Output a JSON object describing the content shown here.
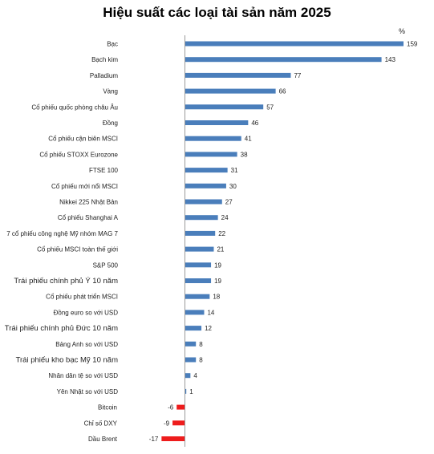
{
  "chart_data": {
    "type": "bar",
    "orientation": "horizontal",
    "title": "Hiệu suất các loại tài sản năm 2025",
    "unit": "%",
    "categories": [
      "Bạc",
      "Bạch kim",
      "Palladium",
      "Vàng",
      "Cổ phiếu quốc phòng châu Âu",
      "Đồng",
      "Cổ phiếu cận biên MSCI",
      "Cổ phiếu STOXX Eurozone",
      "FTSE 100",
      "Cổ phiếu mới nổi MSCI",
      "Nikkei 225 Nhật Bản",
      "Cổ phiếu Shanghai A",
      "7 cổ phiếu công nghệ Mỹ nhóm MAG 7",
      "Cổ phiếu MSCI toàn thế giới",
      "S&P 500",
      "Trái phiếu chính phủ Ý 10 năm",
      "Cổ phiếu phát triển MSCI",
      "Đồng euro so với USD",
      "Trái phiếu chính phủ Đức 10 năm",
      "Bảng Anh so với USD",
      "Trái phiếu kho bạc Mỹ 10 năm",
      "Nhân dân tệ so với USD",
      "Yên Nhật so với USD",
      "Bitcoin",
      "Chỉ số DXY",
      "Dầu Brent"
    ],
    "values": [
      159,
      143,
      77,
      66,
      57,
      46,
      41,
      38,
      31,
      30,
      27,
      24,
      22,
      21,
      19,
      19,
      18,
      14,
      12,
      8,
      8,
      4,
      1,
      -6,
      -9,
      -17
    ],
    "emphasized_categories": [
      "Trái phiếu chính phủ Ý 10 năm",
      "Trái phiếu chính phủ Đức 10 năm",
      "Trái phiếu kho bạc Mỹ 10 năm"
    ],
    "xlim": [
      -17,
      159
    ],
    "grid": false,
    "legend": "none",
    "colors": {
      "positive": "#4a7ebb",
      "negative": "#ee1c1c",
      "axis": "#9a9a9a"
    }
  }
}
